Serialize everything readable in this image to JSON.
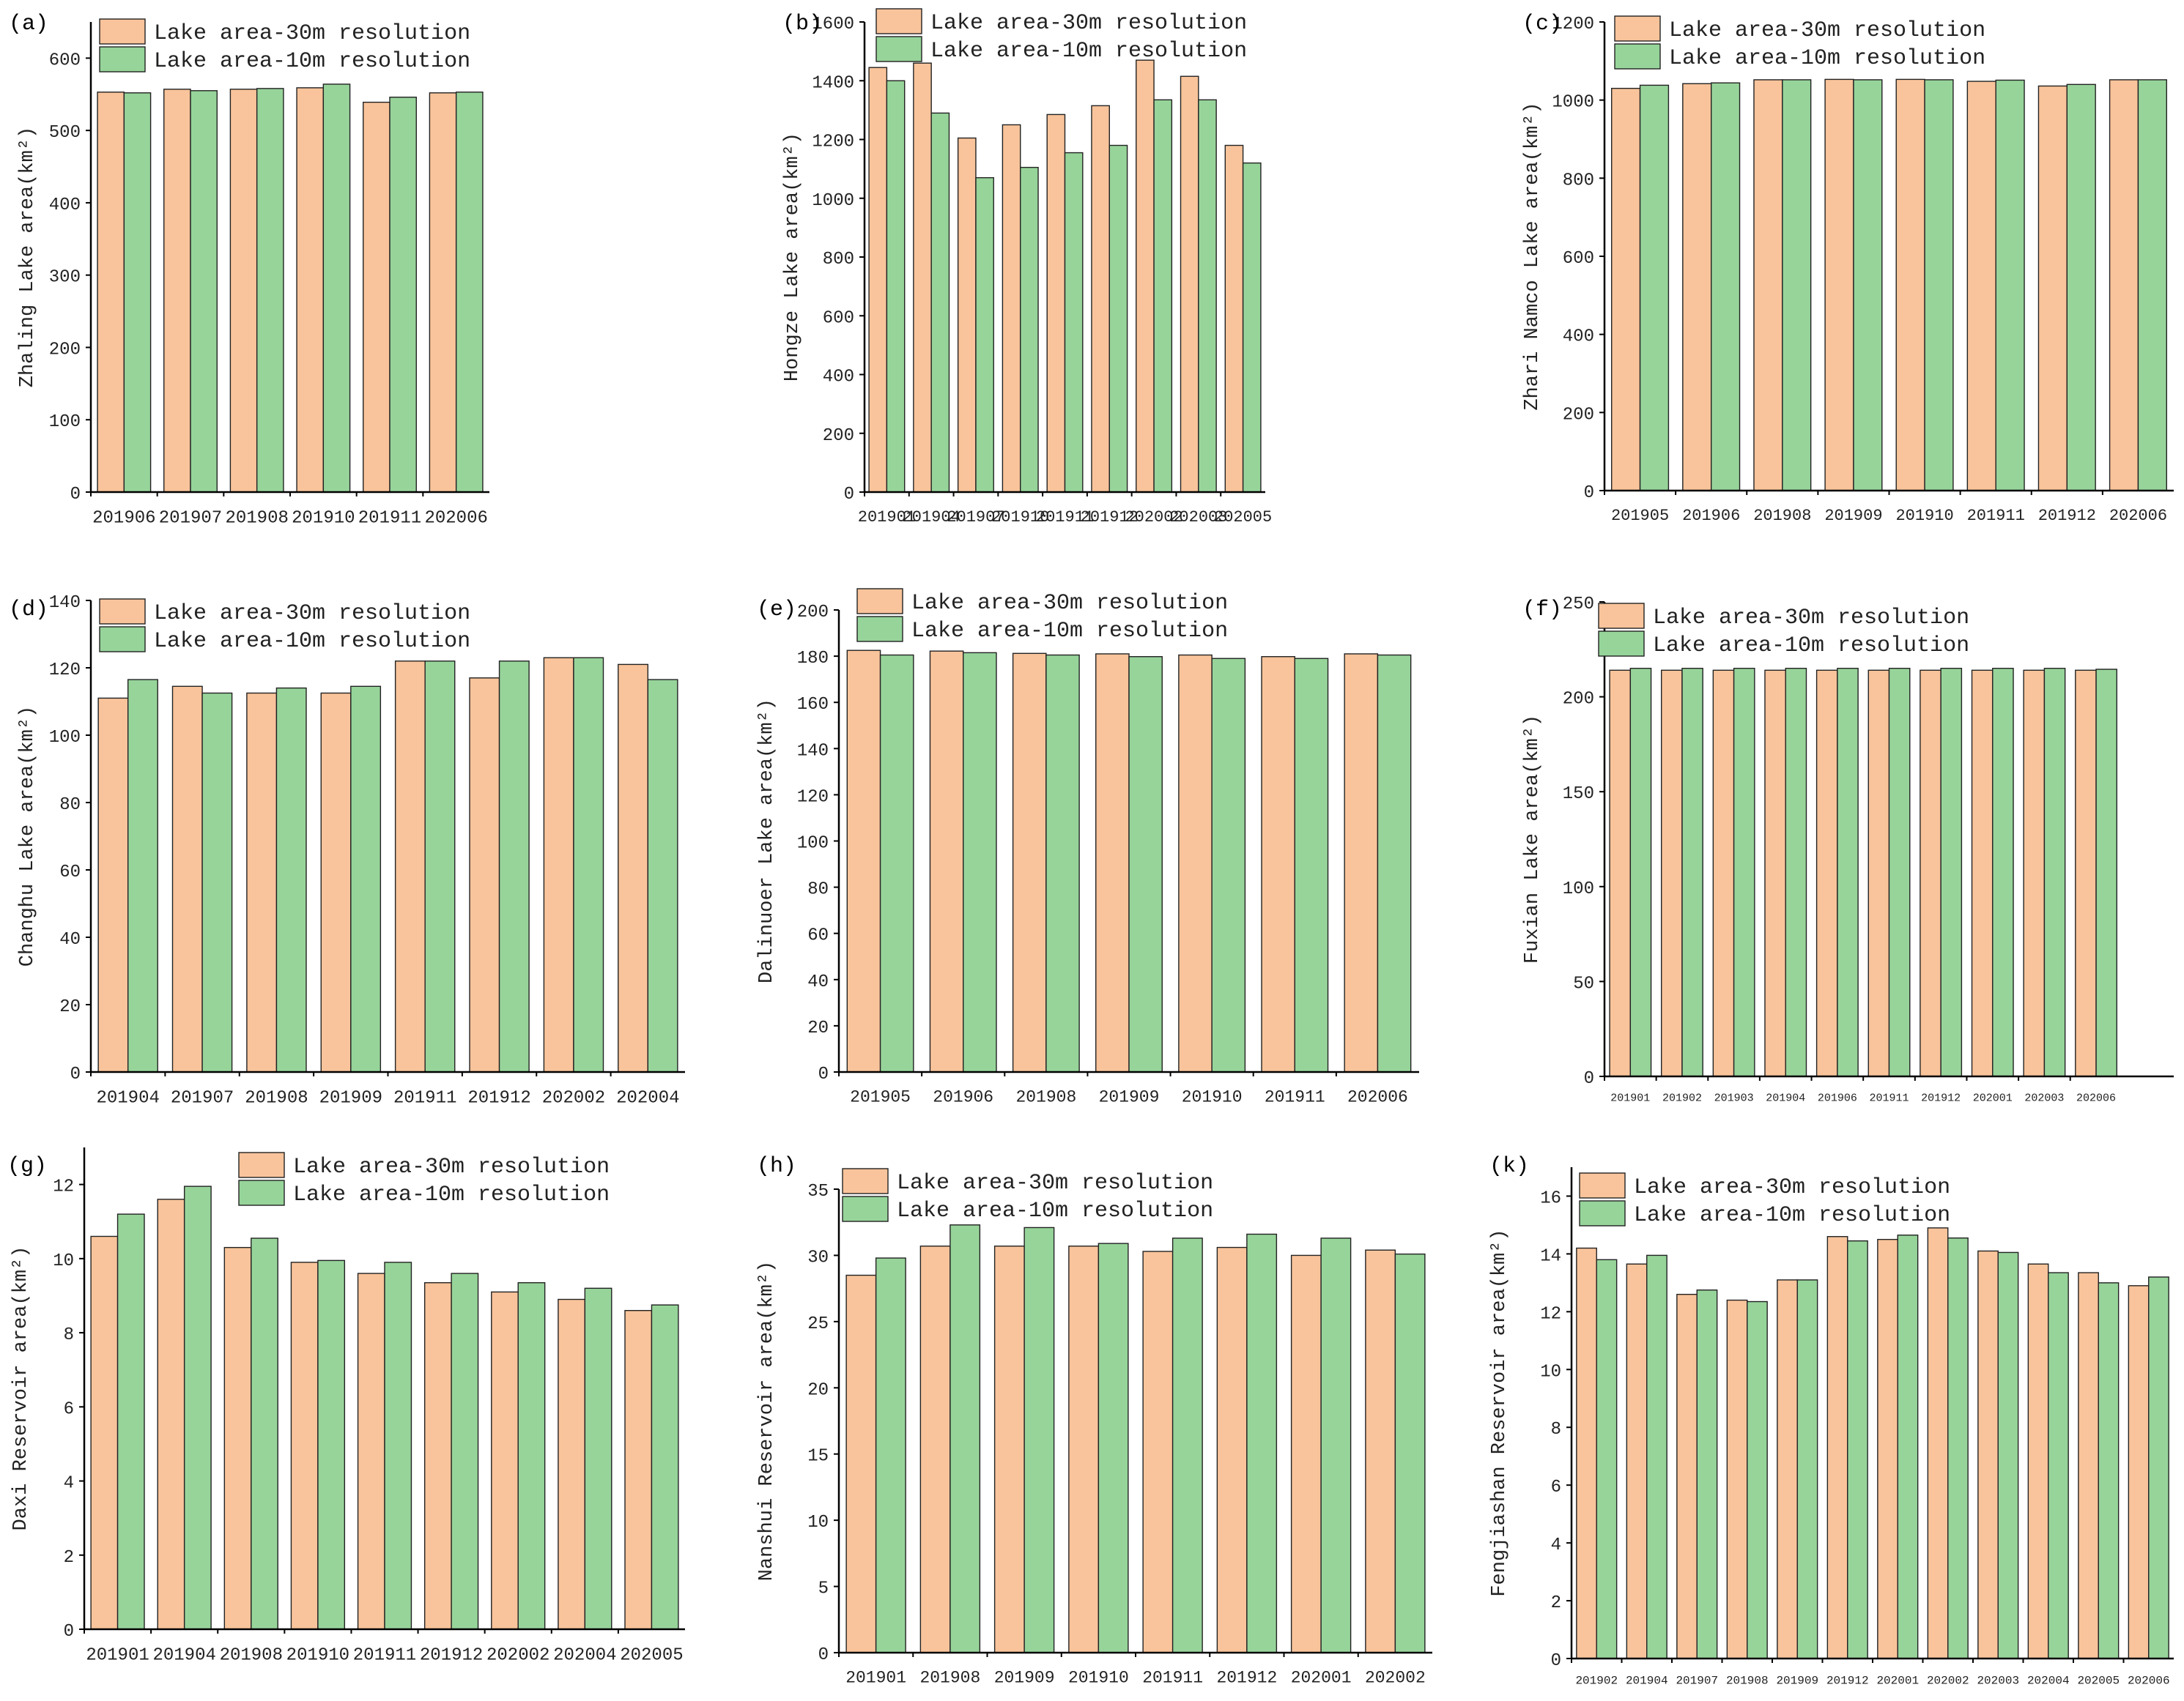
{
  "legend": {
    "series_30m": "Lake area-30m resolution",
    "series_10m": "Lake area-10m resolution"
  },
  "colors": {
    "bar_30m": "#f9c49b",
    "bar_10m": "#97d49a",
    "axis": "#000000",
    "text": "#222222"
  },
  "chart_data": [
    {
      "panel_label": "(a)",
      "type": "bar",
      "ylabel": "Zhaling Lake area(km²)",
      "categories": [
        "201906",
        "201907",
        "201908",
        "201910",
        "201911",
        "202006"
      ],
      "series": [
        {
          "name": "Lake area-30m resolution",
          "values": [
            553,
            557,
            557,
            559,
            539,
            552
          ]
        },
        {
          "name": "Lake area-10m resolution",
          "values": [
            552,
            555,
            558,
            564,
            546,
            553
          ]
        }
      ],
      "ylim": [
        0,
        650
      ],
      "yticks": [
        0,
        100,
        200,
        300,
        400,
        500,
        600
      ]
    },
    {
      "panel_label": "(b)",
      "type": "bar",
      "ylabel": "Hongze Lake area(km²)",
      "categories": [
        "201901",
        "201904",
        "201907",
        "201910",
        "201911",
        "201912",
        "202002",
        "202003",
        "202005"
      ],
      "series": [
        {
          "name": "Lake area-30m resolution",
          "values": [
            1445,
            1460,
            1205,
            1250,
            1285,
            1315,
            1470,
            1415,
            1180
          ]
        },
        {
          "name": "Lake area-10m resolution",
          "values": [
            1400,
            1290,
            1070,
            1105,
            1155,
            1180,
            1335,
            1335,
            1120
          ]
        }
      ],
      "ylim": [
        0,
        1600
      ],
      "yticks": [
        0,
        200,
        400,
        600,
        800,
        1000,
        1200,
        1400,
        1600
      ]
    },
    {
      "panel_label": "(c)",
      "type": "bar",
      "ylabel": "Zhari Namco Lake area(km²)",
      "categories": [
        "201905",
        "201906",
        "201908",
        "201909",
        "201910",
        "201911",
        "201912",
        "202006"
      ],
      "series": [
        {
          "name": "Lake area-30m resolution",
          "values": [
            1030,
            1042,
            1052,
            1053,
            1053,
            1048,
            1036,
            1052
          ]
        },
        {
          "name": "Lake area-10m resolution",
          "values": [
            1038,
            1044,
            1052,
            1052,
            1052,
            1051,
            1040,
            1052
          ]
        }
      ],
      "ylim": [
        0,
        1200
      ],
      "yticks": [
        0,
        200,
        400,
        600,
        800,
        1000,
        1200
      ]
    },
    {
      "panel_label": "(d)",
      "type": "bar",
      "ylabel": "Changhu Lake area(km²)",
      "categories": [
        "201904",
        "201907",
        "201908",
        "201909",
        "201911",
        "201912",
        "202002",
        "202004"
      ],
      "series": [
        {
          "name": "Lake area-30m resolution",
          "values": [
            111,
            114.5,
            112.5,
            112.5,
            122,
            117,
            123,
            121
          ]
        },
        {
          "name": "Lake area-10m resolution",
          "values": [
            116.5,
            112.5,
            114,
            114.5,
            122,
            122,
            123,
            116.5
          ]
        }
      ],
      "ylim": [
        0,
        140
      ],
      "yticks": [
        0,
        20,
        40,
        60,
        80,
        100,
        120,
        140
      ]
    },
    {
      "panel_label": "(e)",
      "type": "bar",
      "ylabel": "Dalinuoer Lake area(km²)",
      "categories": [
        "201905",
        "201906",
        "201908",
        "201909",
        "201910",
        "201911",
        "202006"
      ],
      "series": [
        {
          "name": "Lake area-30m resolution",
          "values": [
            182.5,
            182.2,
            181.2,
            181,
            180.5,
            179.8,
            181
          ]
        },
        {
          "name": "Lake area-10m resolution",
          "values": [
            180.5,
            181.5,
            180.5,
            179.8,
            179,
            179,
            180.5
          ]
        }
      ],
      "ylim": [
        0,
        200
      ],
      "yticks": [
        0,
        20,
        40,
        60,
        80,
        100,
        120,
        140,
        160,
        180,
        200
      ]
    },
    {
      "panel_label": "(f)",
      "type": "bar",
      "ylabel": "Fuxian Lake area(km²)",
      "categories": [
        "201901",
        "201902",
        "201903",
        "201904",
        "201906",
        "201911",
        "201912",
        "202001",
        "202003",
        "202006"
      ],
      "series": [
        {
          "name": "Lake area-30m resolution",
          "values": [
            214,
            214,
            214,
            214,
            214,
            214,
            214,
            214,
            214,
            214
          ]
        },
        {
          "name": "Lake area-10m resolution",
          "values": [
            215,
            215,
            215,
            215,
            215,
            215,
            215,
            215,
            215,
            214.5
          ]
        }
      ],
      "ylim": [
        0,
        250
      ],
      "yticks": [
        0,
        50,
        100,
        150,
        200,
        250
      ]
    },
    {
      "panel_label": "(g)",
      "type": "bar",
      "ylabel": "Daxi Reservoir area(km²)",
      "categories": [
        "201901",
        "201904",
        "201908",
        "201910",
        "201911",
        "201912",
        "202002",
        "202004",
        "202005"
      ],
      "series": [
        {
          "name": "Lake area-30m resolution",
          "values": [
            10.6,
            11.6,
            10.3,
            9.9,
            9.6,
            9.35,
            9.1,
            8.9,
            8.6
          ]
        },
        {
          "name": "Lake area-10m resolution",
          "values": [
            11.2,
            11.95,
            10.55,
            9.95,
            9.9,
            9.6,
            9.35,
            9.2,
            8.75
          ]
        }
      ],
      "ylim": [
        0,
        13
      ],
      "yticks": [
        0,
        2,
        4,
        6,
        8,
        10,
        12
      ]
    },
    {
      "panel_label": "(h)",
      "type": "bar",
      "ylabel": "Nanshui Reservoir area(km²)",
      "categories": [
        "201901",
        "201908",
        "201909",
        "201910",
        "201911",
        "201912",
        "202001",
        "202002"
      ],
      "series": [
        {
          "name": "Lake area-30m resolution",
          "values": [
            28.5,
            30.7,
            30.7,
            30.7,
            30.3,
            30.6,
            30,
            30.4
          ]
        },
        {
          "name": "Lake area-10m resolution",
          "values": [
            29.8,
            32.3,
            32.1,
            30.9,
            31.3,
            31.6,
            31.3,
            30.1
          ]
        }
      ],
      "ylim": [
        0,
        35
      ],
      "yticks": [
        0,
        5,
        10,
        15,
        20,
        25,
        30,
        35
      ]
    },
    {
      "panel_label": "(k)",
      "type": "bar",
      "ylabel": "Fengjiashan Reservoir area(km²)",
      "categories": [
        "201902",
        "201904",
        "201907",
        "201908",
        "201909",
        "201912",
        "202001",
        "202002",
        "202003",
        "202004",
        "202005",
        "202006"
      ],
      "series": [
        {
          "name": "Lake area-30m resolution",
          "values": [
            14.2,
            13.65,
            12.6,
            12.4,
            13.1,
            14.6,
            14.5,
            14.9,
            14.1,
            13.65,
            13.35,
            12.9
          ]
        },
        {
          "name": "Lake area-10m resolution",
          "values": [
            13.8,
            13.95,
            12.75,
            12.35,
            13.1,
            14.45,
            14.65,
            14.55,
            14.05,
            13.35,
            13,
            13.2
          ]
        }
      ],
      "ylim": [
        0,
        17
      ],
      "yticks": [
        0,
        2,
        4,
        6,
        8,
        10,
        12,
        14,
        16
      ]
    }
  ]
}
